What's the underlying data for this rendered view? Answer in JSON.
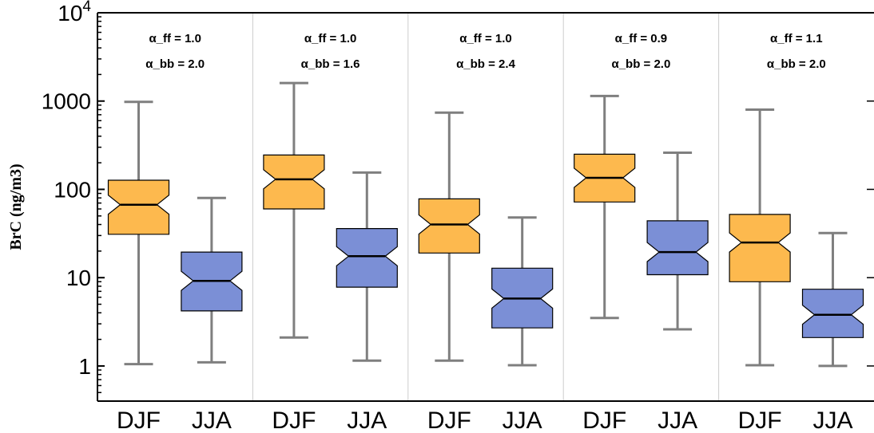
{
  "chart_data": {
    "type": "boxplot",
    "ylabel": "BrC (ng/m3)",
    "yscale": "log",
    "ylim": [
      0.4,
      10000
    ],
    "yticks": [
      {
        "value": 1,
        "label": "1"
      },
      {
        "value": 10,
        "label": "10"
      },
      {
        "value": 100,
        "label": "100"
      },
      {
        "value": 1000,
        "label": "1000"
      },
      {
        "value": 10000,
        "label": "10",
        "exponent": "4"
      }
    ],
    "colors": {
      "DJF": "#fdb94e",
      "JJA": "#7b8fd6",
      "whisker": "#7f7f7f",
      "separator": "#cccccc"
    },
    "panels": [
      {
        "alpha_ff": "α_ff = 1.0",
        "alpha_bb": "α_bb = 2.0",
        "boxes": [
          {
            "category": "DJF",
            "min": 1.05,
            "q1": 31,
            "median": 67,
            "q3": 127,
            "max": 980
          },
          {
            "category": "JJA",
            "min": 1.1,
            "q1": 4.2,
            "median": 9.2,
            "q3": 19.5,
            "max": 80
          }
        ]
      },
      {
        "alpha_ff": "α_ff = 1.0",
        "alpha_bb": "α_bb = 1.6",
        "boxes": [
          {
            "category": "DJF",
            "min": 2.1,
            "q1": 60,
            "median": 130,
            "q3": 245,
            "max": 1600
          },
          {
            "category": "JJA",
            "min": 1.15,
            "q1": 7.8,
            "median": 17.5,
            "q3": 36,
            "max": 155
          }
        ]
      },
      {
        "alpha_ff": "α_ff = 1.0",
        "alpha_bb": "α_bb = 2.4",
        "boxes": [
          {
            "category": "DJF",
            "min": 1.15,
            "q1": 19,
            "median": 40,
            "q3": 78,
            "max": 740
          },
          {
            "category": "JJA",
            "min": 1.02,
            "q1": 2.7,
            "median": 5.8,
            "q3": 12.8,
            "max": 48
          }
        ]
      },
      {
        "alpha_ff": "α_ff = 0.9",
        "alpha_bb": "α_bb = 2.0",
        "boxes": [
          {
            "category": "DJF",
            "min": 3.5,
            "q1": 72,
            "median": 135,
            "q3": 250,
            "max": 1140
          },
          {
            "category": "JJA",
            "min": 2.6,
            "q1": 10.8,
            "median": 19.5,
            "q3": 44,
            "max": 260
          }
        ]
      },
      {
        "alpha_ff": "α_ff = 1.1",
        "alpha_bb": "α_bb = 2.0",
        "boxes": [
          {
            "category": "DJF",
            "min": 1.02,
            "q1": 9,
            "median": 25,
            "q3": 52,
            "max": 800
          },
          {
            "category": "JJA",
            "min": 1.0,
            "q1": 2.1,
            "median": 3.8,
            "q3": 7.4,
            "max": 32
          }
        ]
      }
    ]
  }
}
